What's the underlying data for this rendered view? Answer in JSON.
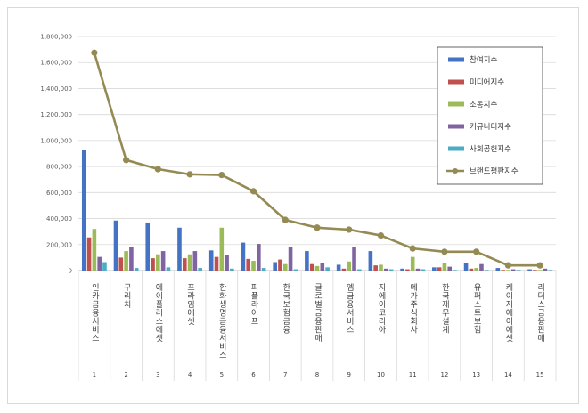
{
  "chart_data": {
    "type": "bar",
    "title": "",
    "xlabel": "",
    "ylabel": "",
    "ylim": [
      0,
      1800000
    ],
    "yticks": [
      0,
      200000,
      400000,
      600000,
      800000,
      1000000,
      1200000,
      1400000,
      1600000,
      1800000
    ],
    "ytick_labels": [
      "0",
      "200,000",
      "400,000",
      "600,000",
      "800,000",
      "1,000,000",
      "1,200,000",
      "1,400,000",
      "1,600,000",
      "1,800,000"
    ],
    "grid": true,
    "legend_position": "top-right",
    "categories": [
      "인카금융서비스",
      "구리치",
      "에이플러스에셋",
      "프라임에셋",
      "한화생명금융서비스",
      "피플라이프",
      "한국보험금융",
      "글로벌금융판매",
      "엠금융서비스",
      "지에이코리아",
      "메가주식회사",
      "한국재무설계",
      "유퍼스트보험",
      "케이지에이에셋",
      "리더스금융판매"
    ],
    "indices": [
      "1",
      "2",
      "3",
      "4",
      "5",
      "6",
      "7",
      "8",
      "9",
      "10",
      "11",
      "12",
      "13",
      "14",
      "15"
    ],
    "series": [
      {
        "name": "참여지수",
        "type": "bar",
        "color": "#4472c4",
        "values": [
          930000,
          385000,
          370000,
          330000,
          155000,
          215000,
          65000,
          150000,
          45000,
          150000,
          15000,
          25000,
          55000,
          20000,
          10000
        ]
      },
      {
        "name": "미디어지수",
        "type": "bar",
        "color": "#c0504d",
        "values": [
          255000,
          100000,
          95000,
          95000,
          105000,
          90000,
          85000,
          50000,
          15000,
          40000,
          10000,
          25000,
          15000,
          5000,
          5000
        ]
      },
      {
        "name": "소통지수",
        "type": "bar",
        "color": "#9bbb59",
        "values": [
          320000,
          150000,
          125000,
          125000,
          330000,
          75000,
          50000,
          35000,
          70000,
          45000,
          105000,
          55000,
          20000,
          5000,
          5000
        ]
      },
      {
        "name": "커뮤니티지수",
        "type": "bar",
        "color": "#8064a2",
        "values": [
          105000,
          180000,
          150000,
          150000,
          120000,
          205000,
          180000,
          55000,
          180000,
          15000,
          15000,
          30000,
          50000,
          10000,
          15000
        ]
      },
      {
        "name": "사회공헌지수",
        "type": "bar",
        "color": "#4bacc6",
        "values": [
          65000,
          20000,
          25000,
          20000,
          15000,
          20000,
          10000,
          25000,
          10000,
          10000,
          10000,
          5000,
          5000,
          5000,
          5000
        ]
      },
      {
        "name": "브랜드평판지수",
        "type": "line",
        "color": "#948a54",
        "values": [
          1675000,
          850000,
          780000,
          740000,
          735000,
          610000,
          390000,
          330000,
          315000,
          270000,
          170000,
          145000,
          145000,
          40000,
          40000
        ]
      }
    ]
  }
}
